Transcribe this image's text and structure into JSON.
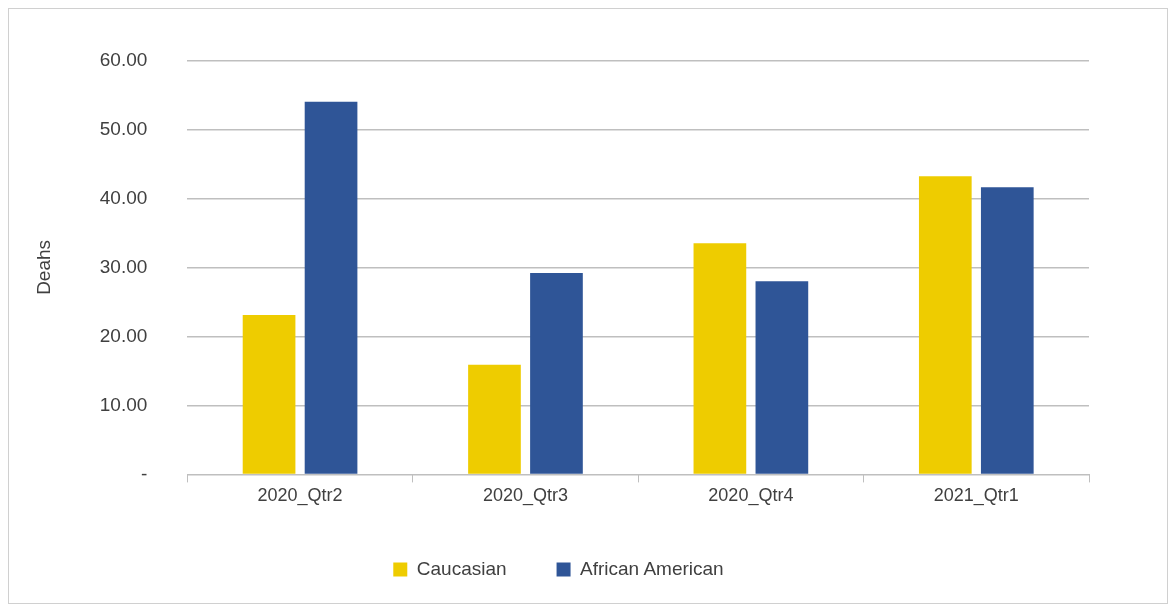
{
  "chart_data": {
    "type": "bar",
    "ylabel": "Deahs",
    "categories": [
      "2020_Qtr2",
      "2020_Qtr3",
      "2020_Qtr4",
      "2021_Qtr1"
    ],
    "series": [
      {
        "name": "Caucasian",
        "color": "#eecc00",
        "values": [
          23.1,
          15.9,
          33.5,
          43.2
        ]
      },
      {
        "name": "African American",
        "color": "#2f5597",
        "values": [
          54.0,
          29.2,
          28.0,
          41.6
        ]
      }
    ],
    "ylim": [
      0,
      60
    ],
    "yticks": [
      {
        "value": 0,
        "label": "-"
      },
      {
        "value": 10,
        "label": "10.00"
      },
      {
        "value": 20,
        "label": "20.00"
      },
      {
        "value": 30,
        "label": "30.00"
      },
      {
        "value": 40,
        "label": "40.00"
      },
      {
        "value": 50,
        "label": "50.00"
      },
      {
        "value": 60,
        "label": "60.00"
      }
    ],
    "grid": "y",
    "legend": "bottom"
  }
}
